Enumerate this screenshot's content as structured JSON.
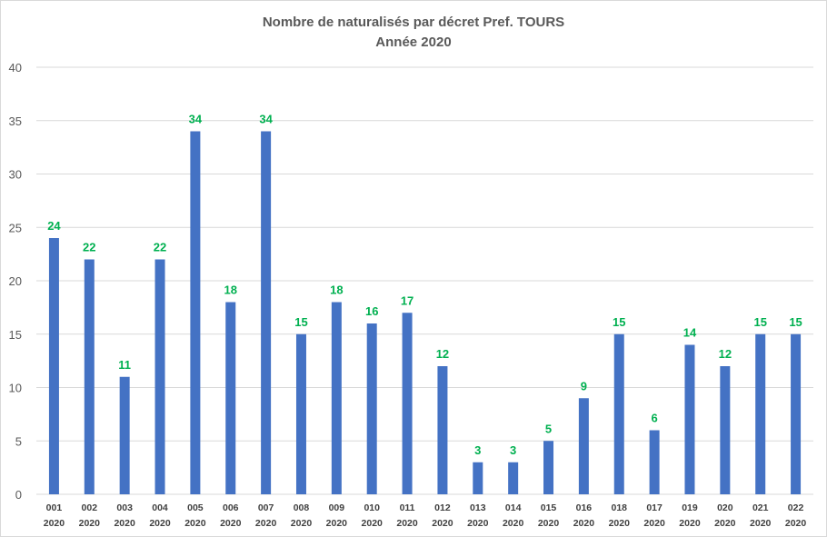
{
  "chart_data": {
    "type": "bar",
    "title": "Nombre de naturalisés par décret Pref. TOURS",
    "subtitle": "Année 2020",
    "categories": [
      [
        "001",
        "2020"
      ],
      [
        "002",
        "2020"
      ],
      [
        "003",
        "2020"
      ],
      [
        "004",
        "2020"
      ],
      [
        "005",
        "2020"
      ],
      [
        "006",
        "2020"
      ],
      [
        "007",
        "2020"
      ],
      [
        "008",
        "2020"
      ],
      [
        "009",
        "2020"
      ],
      [
        "010",
        "2020"
      ],
      [
        "011",
        "2020"
      ],
      [
        "012",
        "2020"
      ],
      [
        "013",
        "2020"
      ],
      [
        "014",
        "2020"
      ],
      [
        "015",
        "2020"
      ],
      [
        "016",
        "2020"
      ],
      [
        "018",
        "2020"
      ],
      [
        "017",
        "2020"
      ],
      [
        "019",
        "2020"
      ],
      [
        "020",
        "2020"
      ],
      [
        "021",
        "2020"
      ],
      [
        "022",
        "2020"
      ]
    ],
    "values": [
      24,
      22,
      11,
      22,
      34,
      18,
      34,
      15,
      18,
      16,
      17,
      12,
      3,
      3,
      5,
      9,
      15,
      6,
      14,
      12,
      15,
      15
    ],
    "ylim": [
      0,
      40
    ],
    "yticks": [
      0,
      5,
      10,
      15,
      20,
      25,
      30,
      35,
      40
    ],
    "grid": true,
    "legend": "none",
    "bar_color": "#4472c4",
    "label_color": "#00b050",
    "grid_color": "#d9d9d9"
  }
}
